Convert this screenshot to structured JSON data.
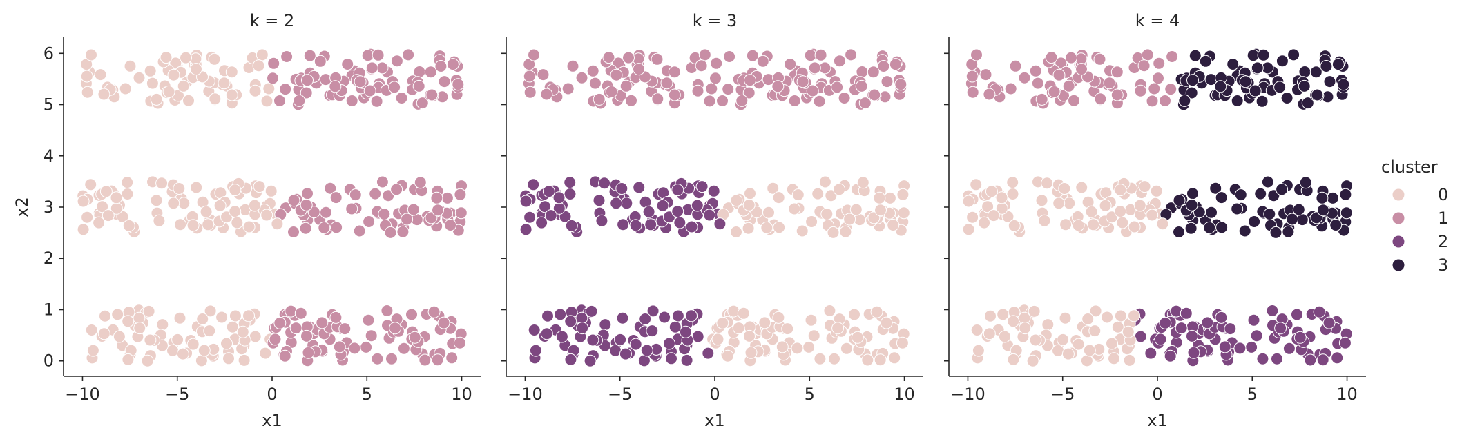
{
  "chart_data": {
    "type": "scatter",
    "x_column": "x1",
    "y_column": "x2",
    "hue": "cluster",
    "xlabel": "x1",
    "ylabel": "x2",
    "xlim": [
      -11.0,
      11.0
    ],
    "ylim": [
      -0.3,
      6.3
    ],
    "xticks": [
      -10,
      -5,
      0,
      5,
      10
    ],
    "xtick_labels": [
      "−10",
      "−5",
      "0",
      "5",
      "10"
    ],
    "yticks": [
      0,
      1,
      2,
      3,
      4,
      5,
      6
    ],
    "ytick_labels": [
      "0",
      "1",
      "2",
      "3",
      "4",
      "5",
      "6"
    ],
    "bands": [
      {
        "y_min": 0.0,
        "y_max": 1.0
      },
      {
        "y_min": 2.5,
        "y_max": 3.5
      },
      {
        "y_min": 5.0,
        "y_max": 6.0
      }
    ],
    "x_range": [
      -10,
      10
    ],
    "points_per_band": 150,
    "panels": [
      {
        "title": "k = 2",
        "clusters": [
          {
            "id": "0",
            "band": 0,
            "x_from": -10,
            "x_to": 0
          },
          {
            "id": "1",
            "band": 0,
            "x_from": 0,
            "x_to": 10
          },
          {
            "id": "0",
            "band": 1,
            "x_from": -10,
            "x_to": 0.3
          },
          {
            "id": "1",
            "band": 1,
            "x_from": 0.3,
            "x_to": 10
          },
          {
            "id": "0",
            "band": 2,
            "x_from": -10,
            "x_to": 0
          },
          {
            "id": "1",
            "band": 2,
            "x_from": 0,
            "x_to": 10
          }
        ]
      },
      {
        "title": "k = 3",
        "clusters": [
          {
            "id": "2",
            "band": 0,
            "x_from": -10,
            "x_to": -0.3
          },
          {
            "id": "0",
            "band": 0,
            "x_from": -0.3,
            "x_to": 10
          },
          {
            "id": "2",
            "band": 1,
            "x_from": -10,
            "x_to": 0.3
          },
          {
            "id": "0",
            "band": 1,
            "x_from": 0.3,
            "x_to": 10
          },
          {
            "id": "1",
            "band": 2,
            "x_from": -10,
            "x_to": 10
          }
        ]
      },
      {
        "title": "k = 4",
        "clusters": [
          {
            "id": "0",
            "band": 0,
            "x_from": -10,
            "x_to": -1.2
          },
          {
            "id": "2",
            "band": 0,
            "x_from": -1.2,
            "x_to": 10
          },
          {
            "id": "0",
            "band": 1,
            "x_from": -10,
            "x_to": 0.3
          },
          {
            "id": "3",
            "band": 1,
            "x_from": 0.3,
            "x_to": 10
          },
          {
            "id": "1",
            "band": 2,
            "x_from": -10,
            "x_to": 0.8
          },
          {
            "id": "3",
            "band": 2,
            "x_from": 0.8,
            "x_to": 10
          }
        ]
      }
    ],
    "legend": {
      "title": "cluster",
      "placement": "right",
      "entries": [
        {
          "label": "0",
          "color": "#ebcec8"
        },
        {
          "label": "1",
          "color": "#c88ea5"
        },
        {
          "label": "2",
          "color": "#7d4780"
        },
        {
          "label": "3",
          "color": "#2d1e3e"
        }
      ]
    },
    "grid": false
  }
}
